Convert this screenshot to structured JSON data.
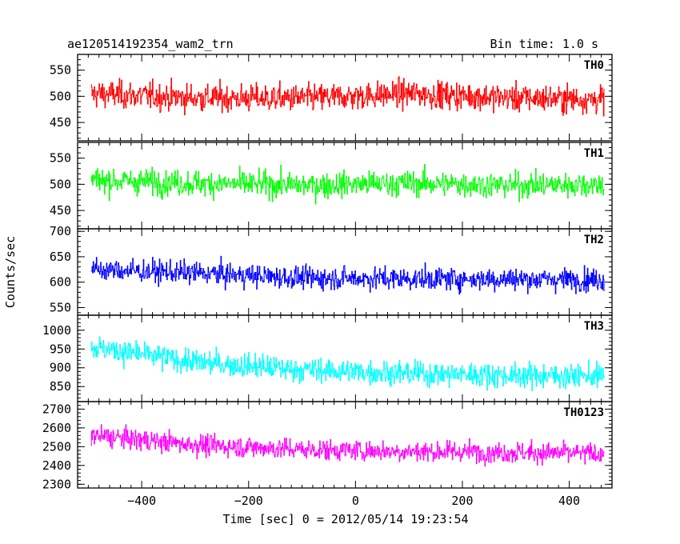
{
  "chart_data": {
    "type": "line",
    "title_left": "ae120514192354_wam2_trn",
    "title_right": "Bin time: 1.0 s",
    "xlabel": "Time [sec] 0 = 2012/05/14 19:23:54",
    "ylabel": "Counts/sec",
    "xlim": [
      -520,
      480
    ],
    "x_ticks": [
      -400,
      -200,
      0,
      200,
      400
    ],
    "x_tick_labels": [
      "−400",
      "−200",
      "0",
      "200",
      "400"
    ],
    "x_data_range": [
      -495,
      465
    ],
    "bin_time_s": 1.0,
    "panels": [
      {
        "name": "TH0",
        "color": "#ff0000",
        "ylim": [
          415,
          580
        ],
        "y_ticks": [
          450,
          500,
          550
        ],
        "y_tick_labels": [
          "450",
          "500",
          "550"
        ],
        "trend": [
          [
            -495,
            505
          ],
          [
            -300,
            497
          ],
          [
            -100,
            496
          ],
          [
            100,
            505
          ],
          [
            300,
            497
          ],
          [
            465,
            494
          ]
        ],
        "noise_sd": 26
      },
      {
        "name": "TH1",
        "color": "#00ff00",
        "ylim": [
          415,
          580
        ],
        "y_ticks": [
          450,
          500,
          550
        ],
        "y_tick_labels": [
          "450",
          "500",
          "550"
        ],
        "trend": [
          [
            -495,
            508
          ],
          [
            -300,
            502
          ],
          [
            -100,
            498
          ],
          [
            100,
            502
          ],
          [
            300,
            498
          ],
          [
            465,
            500
          ]
        ],
        "noise_sd": 24
      },
      {
        "name": "TH2",
        "color": "#0000ff",
        "ylim": [
          535,
          705
        ],
        "y_ticks": [
          550,
          600,
          650,
          700
        ],
        "y_tick_labels": [
          "550",
          "600",
          "650",
          "700"
        ],
        "trend": [
          [
            -495,
            625
          ],
          [
            -300,
            618
          ],
          [
            -100,
            608
          ],
          [
            100,
            607
          ],
          [
            300,
            606
          ],
          [
            465,
            605
          ]
        ],
        "noise_sd": 22
      },
      {
        "name": "TH3",
        "color": "#00ffff",
        "ylim": [
          810,
          1040
        ],
        "y_ticks": [
          850,
          900,
          950,
          1000
        ],
        "y_tick_labels": [
          "850",
          "900",
          "950",
          "1000"
        ],
        "trend": [
          [
            -495,
            955
          ],
          [
            -300,
            915
          ],
          [
            -100,
            895
          ],
          [
            100,
            885
          ],
          [
            300,
            880
          ],
          [
            465,
            878
          ]
        ],
        "noise_sd": 32
      },
      {
        "name": "TH0123",
        "color": "#ff00ff",
        "ylim": [
          2280,
          2740
        ],
        "y_ticks": [
          2300,
          2400,
          2500,
          2600,
          2700
        ],
        "y_tick_labels": [
          "2300",
          "2400",
          "2500",
          "2600",
          "2700"
        ],
        "trend": [
          [
            -495,
            2560
          ],
          [
            -300,
            2510
          ],
          [
            -100,
            2485
          ],
          [
            100,
            2475
          ],
          [
            300,
            2470
          ],
          [
            465,
            2462
          ]
        ],
        "noise_sd": 55
      }
    ]
  }
}
